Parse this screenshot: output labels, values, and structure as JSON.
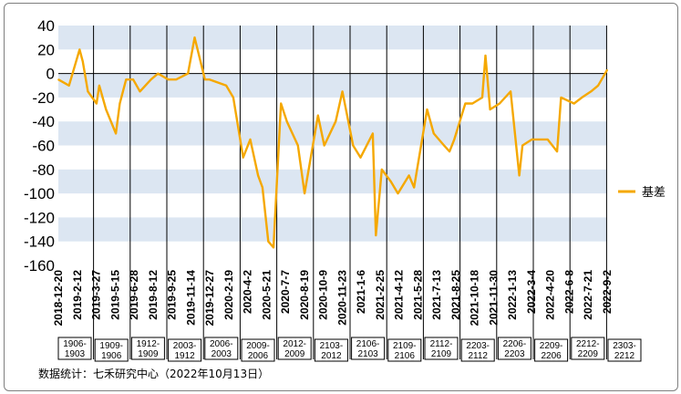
{
  "chart_data": {
    "type": "line",
    "title": "",
    "xlabel": "",
    "ylabel": "",
    "ylim": [
      -160,
      40
    ],
    "y_ticks": [
      40,
      20,
      0,
      -20,
      -40,
      -60,
      -80,
      -100,
      -120,
      -140,
      -160
    ],
    "grid": "alternating horizontal bands",
    "legend": {
      "position": "right",
      "entries": [
        "基差"
      ]
    },
    "series_color": "#f5a800",
    "x_tick_labels": [
      "2018-12-20",
      "2019-2-12",
      "2019-3-27",
      "2019-5-15",
      "2019-6-28",
      "2019-8-12",
      "2019-9-25",
      "2019-11-14",
      "2019-12-27",
      "2020-2-19",
      "2020-4-2",
      "2020-5-21",
      "2020-7-7",
      "2020-8-19",
      "2020-10-9",
      "2020-11-23",
      "2021-1-6",
      "2021-2-25",
      "2021-4-12",
      "2021-5-28",
      "2021-7-13",
      "2021-8-25",
      "2021-10-18",
      "2021-11-30",
      "2022-1-13",
      "2022-3-4",
      "2022-4-20",
      "2022-6-8",
      "2022-7-21",
      "2022-9-2"
    ],
    "contract_periods": [
      "1906-1903",
      "1909-1906",
      "1912-1909",
      "2003-1912",
      "2006-2003",
      "2009-2006",
      "2012-2009",
      "2103-2012",
      "2106-2103",
      "2109-2106",
      "2112-2109",
      "2203-2112",
      "2206-2203",
      "2209-2206",
      "2212-2209",
      "2303-2212"
    ],
    "series": [
      {
        "name": "基差",
        "x": [
          "2018-12-20",
          "2019-1-16",
          "2019-2-12",
          "2019-2-20",
          "2019-3-5",
          "2019-3-27",
          "2019-4-3",
          "2019-4-20",
          "2019-5-15",
          "2019-5-25",
          "2019-6-10",
          "2019-6-28",
          "2019-7-15",
          "2019-8-12",
          "2019-8-30",
          "2019-9-25",
          "2019-10-15",
          "2019-11-14",
          "2019-12-1",
          "2019-12-27",
          "2020-1-8",
          "2020-2-19",
          "2020-3-8",
          "2020-4-2",
          "2020-4-20",
          "2020-5-10",
          "2020-5-21",
          "2020-6-5",
          "2020-6-18",
          "2020-7-7",
          "2020-7-22",
          "2020-8-19",
          "2020-9-5",
          "2020-10-9",
          "2020-10-25",
          "2020-11-23",
          "2020-12-10",
          "2021-1-6",
          "2021-1-25",
          "2021-2-25",
          "2021-3-5",
          "2021-3-20",
          "2021-4-12",
          "2021-4-30",
          "2021-5-28",
          "2021-6-10",
          "2021-7-13",
          "2021-7-30",
          "2021-8-25",
          "2021-9-8",
          "2021-9-20",
          "2021-10-18",
          "2021-11-5",
          "2021-11-30",
          "2021-12-8",
          "2021-12-20",
          "2022-1-13",
          "2022-2-10",
          "2022-3-4",
          "2022-3-12",
          "2022-4-5",
          "2022-4-20",
          "2022-5-15",
          "2022-6-8",
          "2022-6-18",
          "2022-7-21",
          "2022-8-10",
          "2022-9-2",
          "2022-9-20",
          "2022-10-13"
        ],
        "values": [
          -5,
          -10,
          20,
          10,
          -15,
          -25,
          -10,
          -30,
          -50,
          -25,
          -5,
          -5,
          -15,
          -5,
          0,
          -5,
          -5,
          0,
          30,
          -5,
          -5,
          -10,
          -20,
          -70,
          -55,
          -85,
          -95,
          -140,
          -145,
          -25,
          -40,
          -60,
          -100,
          -35,
          -60,
          -40,
          -15,
          -60,
          -70,
          -50,
          -135,
          -80,
          -90,
          -100,
          -85,
          -95,
          -30,
          -50,
          -60,
          -65,
          -55,
          -25,
          -25,
          -20,
          15,
          -30,
          -25,
          -15,
          -85,
          -60,
          -55,
          -55,
          -55,
          -65,
          -20,
          -25,
          -20,
          -15,
          -10,
          3
        ]
      }
    ]
  },
  "source_text": "数据统计：七禾研究中心（2022年10月13日）"
}
